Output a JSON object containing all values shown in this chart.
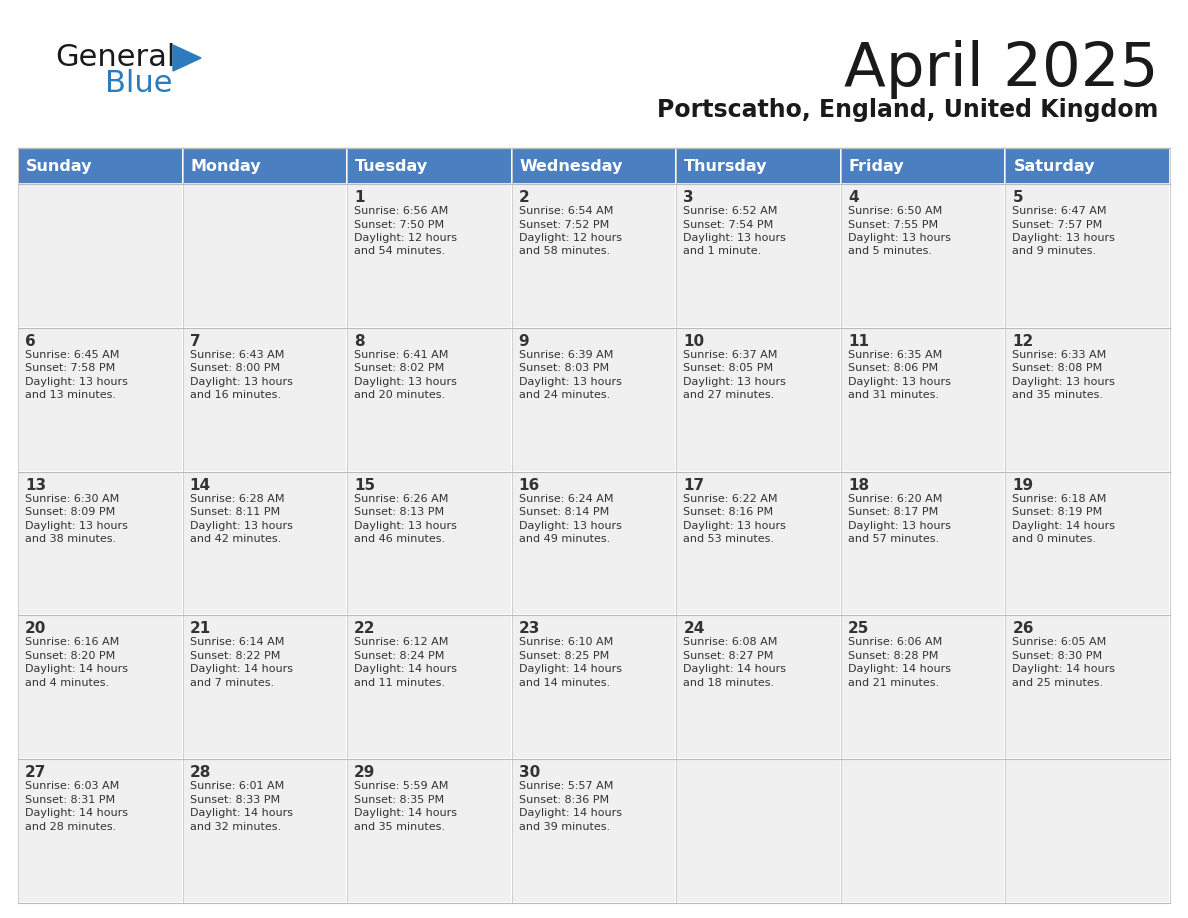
{
  "title": "April 2025",
  "subtitle": "Portscatho, England, United Kingdom",
  "header_bg": "#4a7fc1",
  "header_text_color": "#FFFFFF",
  "cell_bg_light": "#f0f0f0",
  "cell_bg_white": "#FFFFFF",
  "text_color": "#333333",
  "day_headers": [
    "Sunday",
    "Monday",
    "Tuesday",
    "Wednesday",
    "Thursday",
    "Friday",
    "Saturday"
  ],
  "logo_general_color": "#1a1a1a",
  "logo_blue_color": "#2B7BBD",
  "border_color": "#bbbbbb",
  "calendar": [
    [
      {
        "day": "",
        "info": ""
      },
      {
        "day": "",
        "info": ""
      },
      {
        "day": "1",
        "info": "Sunrise: 6:56 AM\nSunset: 7:50 PM\nDaylight: 12 hours\nand 54 minutes."
      },
      {
        "day": "2",
        "info": "Sunrise: 6:54 AM\nSunset: 7:52 PM\nDaylight: 12 hours\nand 58 minutes."
      },
      {
        "day": "3",
        "info": "Sunrise: 6:52 AM\nSunset: 7:54 PM\nDaylight: 13 hours\nand 1 minute."
      },
      {
        "day": "4",
        "info": "Sunrise: 6:50 AM\nSunset: 7:55 PM\nDaylight: 13 hours\nand 5 minutes."
      },
      {
        "day": "5",
        "info": "Sunrise: 6:47 AM\nSunset: 7:57 PM\nDaylight: 13 hours\nand 9 minutes."
      }
    ],
    [
      {
        "day": "6",
        "info": "Sunrise: 6:45 AM\nSunset: 7:58 PM\nDaylight: 13 hours\nand 13 minutes."
      },
      {
        "day": "7",
        "info": "Sunrise: 6:43 AM\nSunset: 8:00 PM\nDaylight: 13 hours\nand 16 minutes."
      },
      {
        "day": "8",
        "info": "Sunrise: 6:41 AM\nSunset: 8:02 PM\nDaylight: 13 hours\nand 20 minutes."
      },
      {
        "day": "9",
        "info": "Sunrise: 6:39 AM\nSunset: 8:03 PM\nDaylight: 13 hours\nand 24 minutes."
      },
      {
        "day": "10",
        "info": "Sunrise: 6:37 AM\nSunset: 8:05 PM\nDaylight: 13 hours\nand 27 minutes."
      },
      {
        "day": "11",
        "info": "Sunrise: 6:35 AM\nSunset: 8:06 PM\nDaylight: 13 hours\nand 31 minutes."
      },
      {
        "day": "12",
        "info": "Sunrise: 6:33 AM\nSunset: 8:08 PM\nDaylight: 13 hours\nand 35 minutes."
      }
    ],
    [
      {
        "day": "13",
        "info": "Sunrise: 6:30 AM\nSunset: 8:09 PM\nDaylight: 13 hours\nand 38 minutes."
      },
      {
        "day": "14",
        "info": "Sunrise: 6:28 AM\nSunset: 8:11 PM\nDaylight: 13 hours\nand 42 minutes."
      },
      {
        "day": "15",
        "info": "Sunrise: 6:26 AM\nSunset: 8:13 PM\nDaylight: 13 hours\nand 46 minutes."
      },
      {
        "day": "16",
        "info": "Sunrise: 6:24 AM\nSunset: 8:14 PM\nDaylight: 13 hours\nand 49 minutes."
      },
      {
        "day": "17",
        "info": "Sunrise: 6:22 AM\nSunset: 8:16 PM\nDaylight: 13 hours\nand 53 minutes."
      },
      {
        "day": "18",
        "info": "Sunrise: 6:20 AM\nSunset: 8:17 PM\nDaylight: 13 hours\nand 57 minutes."
      },
      {
        "day": "19",
        "info": "Sunrise: 6:18 AM\nSunset: 8:19 PM\nDaylight: 14 hours\nand 0 minutes."
      }
    ],
    [
      {
        "day": "20",
        "info": "Sunrise: 6:16 AM\nSunset: 8:20 PM\nDaylight: 14 hours\nand 4 minutes."
      },
      {
        "day": "21",
        "info": "Sunrise: 6:14 AM\nSunset: 8:22 PM\nDaylight: 14 hours\nand 7 minutes."
      },
      {
        "day": "22",
        "info": "Sunrise: 6:12 AM\nSunset: 8:24 PM\nDaylight: 14 hours\nand 11 minutes."
      },
      {
        "day": "23",
        "info": "Sunrise: 6:10 AM\nSunset: 8:25 PM\nDaylight: 14 hours\nand 14 minutes."
      },
      {
        "day": "24",
        "info": "Sunrise: 6:08 AM\nSunset: 8:27 PM\nDaylight: 14 hours\nand 18 minutes."
      },
      {
        "day": "25",
        "info": "Sunrise: 6:06 AM\nSunset: 8:28 PM\nDaylight: 14 hours\nand 21 minutes."
      },
      {
        "day": "26",
        "info": "Sunrise: 6:05 AM\nSunset: 8:30 PM\nDaylight: 14 hours\nand 25 minutes."
      }
    ],
    [
      {
        "day": "27",
        "info": "Sunrise: 6:03 AM\nSunset: 8:31 PM\nDaylight: 14 hours\nand 28 minutes."
      },
      {
        "day": "28",
        "info": "Sunrise: 6:01 AM\nSunset: 8:33 PM\nDaylight: 14 hours\nand 32 minutes."
      },
      {
        "day": "29",
        "info": "Sunrise: 5:59 AM\nSunset: 8:35 PM\nDaylight: 14 hours\nand 35 minutes."
      },
      {
        "day": "30",
        "info": "Sunrise: 5:57 AM\nSunset: 8:36 PM\nDaylight: 14 hours\nand 39 minutes."
      },
      {
        "day": "",
        "info": ""
      },
      {
        "day": "",
        "info": ""
      },
      {
        "day": "",
        "info": ""
      }
    ]
  ]
}
